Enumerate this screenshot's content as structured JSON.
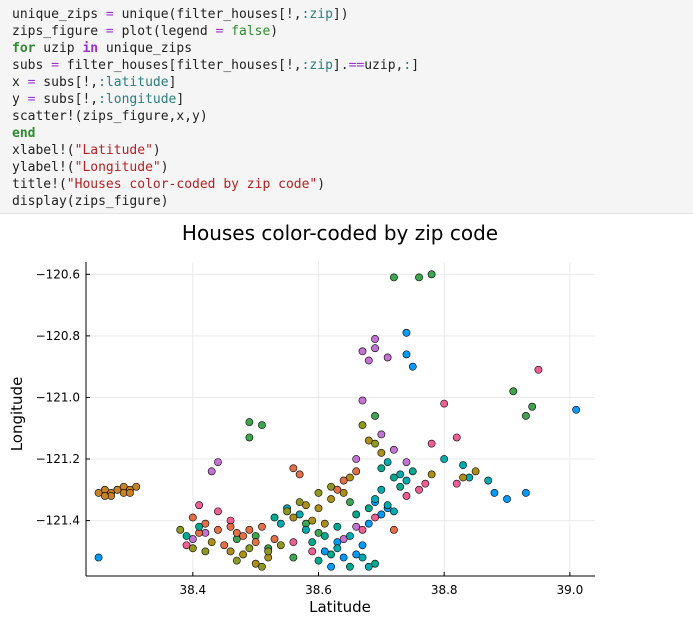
{
  "code": {
    "lines": [
      [
        {
          "t": "unique_zips "
        },
        {
          "t": "=",
          "c": "op"
        },
        {
          "t": " unique(filter_houses[!,"
        },
        {
          "t": ":zip",
          "c": "sym"
        },
        {
          "t": "])"
        }
      ],
      [
        {
          "t": "zips_figure "
        },
        {
          "t": "=",
          "c": "op"
        },
        {
          "t": " plot(legend "
        },
        {
          "t": "=",
          "c": "op"
        },
        {
          "t": " "
        },
        {
          "t": "false",
          "c": "bool"
        },
        {
          "t": ")"
        }
      ],
      [
        {
          "t": "for",
          "c": "kw"
        },
        {
          "t": " uzip "
        },
        {
          "t": "in",
          "c": "kw2"
        },
        {
          "t": " unique_zips"
        }
      ],
      [
        {
          "t": "subs "
        },
        {
          "t": "=",
          "c": "op"
        },
        {
          "t": " filter_houses[filter_houses[!,"
        },
        {
          "t": ":zip",
          "c": "sym"
        },
        {
          "t": "]."
        },
        {
          "t": "==",
          "c": "op"
        },
        {
          "t": "uzip,"
        },
        {
          "t": ":",
          "c": "sym"
        },
        {
          "t": "]"
        }
      ],
      [
        {
          "t": "x "
        },
        {
          "t": "=",
          "c": "op"
        },
        {
          "t": " subs[!,"
        },
        {
          "t": ":latitude",
          "c": "sym"
        },
        {
          "t": "]"
        }
      ],
      [
        {
          "t": "y "
        },
        {
          "t": "=",
          "c": "op"
        },
        {
          "t": " subs[!,"
        },
        {
          "t": ":longitude",
          "c": "sym"
        },
        {
          "t": "]"
        }
      ],
      [
        {
          "t": "scatter!(zips_figure,x,y)"
        }
      ],
      [
        {
          "t": "end",
          "c": "kw"
        }
      ],
      [
        {
          "t": "xlabel!("
        },
        {
          "t": "\"Latitude\"",
          "c": "str"
        },
        {
          "t": ")"
        }
      ],
      [
        {
          "t": "ylabel!("
        },
        {
          "t": "\"Longitude\"",
          "c": "str"
        },
        {
          "t": ")"
        }
      ],
      [
        {
          "t": "title!("
        },
        {
          "t": "\"Houses color-coded by zip code\"",
          "c": "str"
        },
        {
          "t": ")"
        }
      ],
      [
        {
          "t": "display(zips_figure)"
        }
      ]
    ]
  },
  "colors": {
    "code_op": "#9b30d9",
    "code_symbol": "#2a7f7f",
    "code_string": "#b22222",
    "code_keyword": "#2e8b2e",
    "palette": [
      "#009AFA",
      "#E36F47",
      "#3EA44E",
      "#C371D2",
      "#AC8E18",
      "#00AAAE",
      "#ED5E93",
      "#C68225",
      "#00A98D",
      "#8E971E"
    ]
  },
  "chart_data": {
    "type": "scatter",
    "title": "Houses color-coded by zip code",
    "xlabel": "Latitude",
    "ylabel": "Longitude",
    "xlim": [
      38.23,
      39.04
    ],
    "ylim": [
      -121.58,
      -120.56
    ],
    "xticks": [
      38.4,
      38.6,
      38.8,
      39.0
    ],
    "xtick_labels": [
      "38.4",
      "38.6",
      "38.8",
      "39.0"
    ],
    "yticks": [
      -120.6,
      -120.8,
      -121.0,
      -121.2,
      -121.4
    ],
    "ytick_labels": [
      "−120.6",
      "−120.8",
      "−121.0",
      "−121.2",
      "−121.4"
    ],
    "grid": true,
    "legend": false,
    "series": [
      {
        "color": "#C68225",
        "points": [
          [
            38.25,
            -121.31
          ],
          [
            38.26,
            -121.3
          ],
          [
            38.27,
            -121.31
          ],
          [
            38.28,
            -121.3
          ],
          [
            38.29,
            -121.29
          ],
          [
            38.3,
            -121.3
          ],
          [
            38.27,
            -121.32
          ],
          [
            38.31,
            -121.29
          ],
          [
            38.29,
            -121.31
          ],
          [
            38.26,
            -121.32
          ],
          [
            38.28,
            -121.3
          ],
          [
            38.3,
            -121.31
          ]
        ]
      },
      {
        "color": "#009AFA",
        "points": [
          [
            38.25,
            -121.52
          ],
          [
            38.88,
            -121.31
          ],
          [
            38.93,
            -121.31
          ],
          [
            38.9,
            -121.33
          ],
          [
            39.01,
            -121.04
          ],
          [
            38.74,
            -120.79
          ],
          [
            38.74,
            -120.86
          ],
          [
            38.75,
            -120.9
          ],
          [
            38.68,
            -121.41
          ],
          [
            38.7,
            -121.38
          ],
          [
            38.62,
            -121.55
          ],
          [
            38.64,
            -121.52
          ],
          [
            38.66,
            -121.51
          ],
          [
            38.63,
            -121.47
          ],
          [
            38.71,
            -121.36
          ],
          [
            38.69,
            -121.34
          ],
          [
            38.61,
            -121.5
          ],
          [
            38.67,
            -121.48
          ]
        ]
      },
      {
        "color": "#3EA44E",
        "points": [
          [
            38.72,
            -120.61
          ],
          [
            38.76,
            -120.61
          ],
          [
            38.78,
            -120.6
          ],
          [
            38.49,
            -121.08
          ],
          [
            38.49,
            -121.13
          ],
          [
            38.51,
            -121.09
          ],
          [
            38.91,
            -120.98
          ],
          [
            38.93,
            -121.06
          ],
          [
            38.94,
            -121.03
          ],
          [
            38.65,
            -121.34
          ],
          [
            38.58,
            -121.41
          ],
          [
            38.6,
            -121.44
          ],
          [
            38.69,
            -121.06
          ],
          [
            38.56,
            -121.52
          ],
          [
            38.52,
            -121.49
          ],
          [
            38.5,
            -121.45
          ],
          [
            38.47,
            -121.46
          ]
        ]
      },
      {
        "color": "#C371D2",
        "points": [
          [
            38.69,
            -120.81
          ],
          [
            38.69,
            -120.84
          ],
          [
            38.67,
            -120.85
          ],
          [
            38.68,
            -120.88
          ],
          [
            38.71,
            -120.87
          ],
          [
            38.67,
            -121.01
          ],
          [
            38.7,
            -121.12
          ],
          [
            38.72,
            -121.17
          ],
          [
            38.74,
            -121.21
          ],
          [
            38.66,
            -121.2
          ],
          [
            38.43,
            -121.24
          ],
          [
            38.44,
            -121.21
          ],
          [
            38.4,
            -121.46
          ],
          [
            38.42,
            -121.44
          ],
          [
            38.64,
            -121.46
          ],
          [
            38.66,
            -121.42
          ]
        ]
      },
      {
        "color": "#ED5E93",
        "points": [
          [
            38.95,
            -120.91
          ],
          [
            38.8,
            -121.02
          ],
          [
            38.78,
            -121.15
          ],
          [
            38.82,
            -121.13
          ],
          [
            38.82,
            -121.28
          ],
          [
            38.77,
            -121.28
          ],
          [
            38.74,
            -121.32
          ],
          [
            38.76,
            -121.3
          ],
          [
            38.44,
            -121.37
          ],
          [
            38.41,
            -121.35
          ],
          [
            38.46,
            -121.4
          ],
          [
            38.67,
            -121.43
          ],
          [
            38.69,
            -121.39
          ],
          [
            38.56,
            -121.47
          ],
          [
            38.59,
            -121.5
          ],
          [
            38.39,
            -121.48
          ]
        ]
      },
      {
        "color": "#E36F47",
        "points": [
          [
            38.56,
            -121.23
          ],
          [
            38.57,
            -121.25
          ],
          [
            38.63,
            -121.3
          ],
          [
            38.64,
            -121.27
          ],
          [
            38.66,
            -121.24
          ],
          [
            38.4,
            -121.39
          ],
          [
            38.42,
            -121.41
          ],
          [
            38.44,
            -121.43
          ],
          [
            38.47,
            -121.44
          ],
          [
            38.49,
            -121.43
          ],
          [
            38.51,
            -121.42
          ],
          [
            38.48,
            -121.45
          ],
          [
            38.46,
            -121.42
          ],
          [
            38.53,
            -121.46
          ],
          [
            38.5,
            -121.47
          ],
          [
            38.45,
            -121.48
          ],
          [
            38.41,
            -121.44
          ],
          [
            38.72,
            -121.43
          ]
        ]
      },
      {
        "color": "#00AAAE",
        "points": [
          [
            38.8,
            -121.2
          ],
          [
            38.83,
            -121.22
          ],
          [
            38.84,
            -121.26
          ],
          [
            38.87,
            -121.27
          ],
          [
            38.71,
            -121.21
          ],
          [
            38.73,
            -121.25
          ],
          [
            38.74,
            -121.27
          ],
          [
            38.7,
            -121.3
          ],
          [
            38.69,
            -121.33
          ],
          [
            38.71,
            -121.35
          ],
          [
            38.72,
            -121.37
          ],
          [
            38.55,
            -121.36
          ],
          [
            38.57,
            -121.38
          ],
          [
            38.54,
            -121.41
          ],
          [
            38.58,
            -121.43
          ],
          [
            38.67,
            -121.52
          ],
          [
            38.68,
            -121.55
          ],
          [
            38.63,
            -121.49
          ],
          [
            38.65,
            -121.45
          ]
        ]
      },
      {
        "color": "#AC8E18",
        "points": [
          [
            38.68,
            -121.14
          ],
          [
            38.7,
            -121.18
          ],
          [
            38.65,
            -121.26
          ],
          [
            38.64,
            -121.31
          ],
          [
            38.62,
            -121.33
          ],
          [
            38.6,
            -121.36
          ],
          [
            38.58,
            -121.35
          ],
          [
            38.56,
            -121.39
          ],
          [
            38.59,
            -121.4
          ],
          [
            38.61,
            -121.41
          ],
          [
            38.85,
            -121.24
          ],
          [
            38.83,
            -121.26
          ],
          [
            38.78,
            -121.25
          ],
          [
            38.52,
            -121.52
          ],
          [
            38.48,
            -121.51
          ],
          [
            38.5,
            -121.54
          ],
          [
            38.46,
            -121.5
          ],
          [
            38.43,
            -121.47
          ]
        ]
      },
      {
        "color": "#8E971E",
        "points": [
          [
            38.67,
            -121.09
          ],
          [
            38.69,
            -121.15
          ],
          [
            38.62,
            -121.29
          ],
          [
            38.6,
            -121.31
          ],
          [
            38.57,
            -121.34
          ],
          [
            38.55,
            -121.37
          ],
          [
            38.52,
            -121.5
          ],
          [
            38.54,
            -121.48
          ],
          [
            38.49,
            -121.49
          ],
          [
            38.47,
            -121.53
          ],
          [
            38.51,
            -121.55
          ],
          [
            38.38,
            -121.43
          ],
          [
            38.4,
            -121.49
          ],
          [
            38.42,
            -121.5
          ]
        ]
      },
      {
        "color": "#00A98D",
        "points": [
          [
            38.7,
            -121.23
          ],
          [
            38.72,
            -121.26
          ],
          [
            38.75,
            -121.24
          ],
          [
            38.73,
            -121.29
          ],
          [
            38.68,
            -121.36
          ],
          [
            38.66,
            -121.38
          ],
          [
            38.63,
            -121.42
          ],
          [
            38.61,
            -121.45
          ],
          [
            38.59,
            -121.47
          ],
          [
            38.62,
            -121.51
          ],
          [
            38.6,
            -121.53
          ],
          [
            38.65,
            -121.55
          ],
          [
            38.69,
            -121.54
          ],
          [
            38.53,
            -121.39
          ],
          [
            38.41,
            -121.42
          ],
          [
            38.39,
            -121.45
          ]
        ]
      }
    ]
  }
}
